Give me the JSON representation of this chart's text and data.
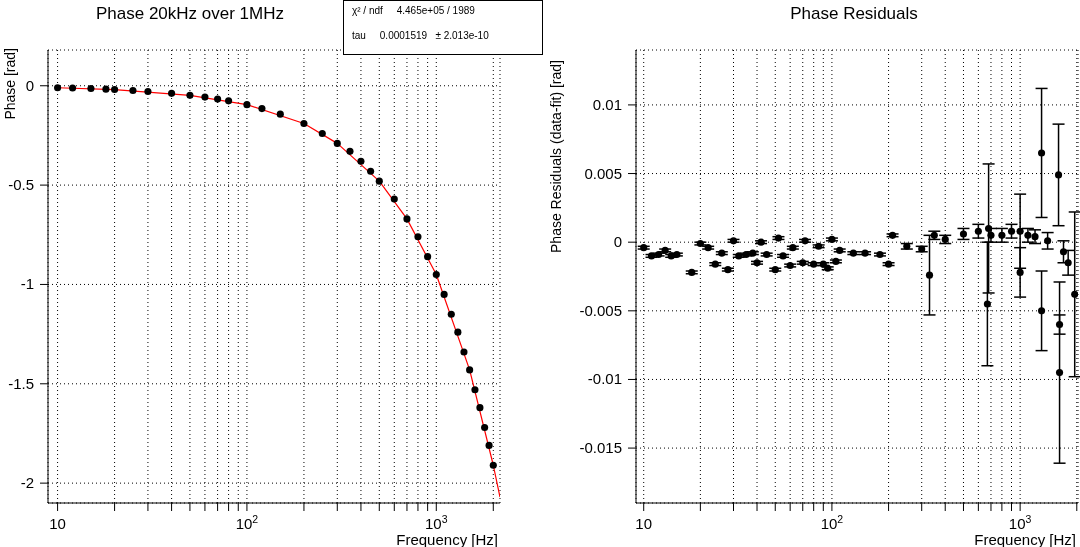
{
  "chart_data": [
    {
      "type": "scatter",
      "title": "Phase 20kHz over 1MHz",
      "xlabel": "Frequency [Hz]",
      "ylabel": "Phase [rad]",
      "log": "x",
      "grid": true,
      "xlim": [
        8.9,
        2170
      ],
      "ylim": [
        -2.1,
        0.18
      ],
      "xticks": [
        {
          "value": 10,
          "label": "10"
        },
        {
          "value": 20,
          "label": null
        },
        {
          "value": 30,
          "label": null
        },
        {
          "value": 40,
          "label": null
        },
        {
          "value": 50,
          "label": null
        },
        {
          "value": 60,
          "label": null
        },
        {
          "value": 70,
          "label": null
        },
        {
          "value": 80,
          "label": null
        },
        {
          "value": 90,
          "label": null
        },
        {
          "value": 100,
          "label": "10$^{2}$"
        },
        {
          "value": 200,
          "label": null
        },
        {
          "value": 300,
          "label": null
        },
        {
          "value": 400,
          "label": null
        },
        {
          "value": 500,
          "label": null
        },
        {
          "value": 600,
          "label": null
        },
        {
          "value": 700,
          "label": null
        },
        {
          "value": 800,
          "label": null
        },
        {
          "value": 900,
          "label": null
        },
        {
          "value": 1000,
          "label": "10$^{3}$"
        },
        {
          "value": 2000,
          "label": null
        }
      ],
      "yticks": [
        0,
        -0.5,
        -1,
        -1.5,
        -2
      ],
      "annotations": [
        "χ² / ndf     4.465e+05 / 1989",
        "tau     0.0001519   ± 2.013e-10"
      ],
      "series": [
        {
          "type": "scatter",
          "color": "#000000",
          "marker": "circle",
          "x": [
            10,
            12,
            15,
            18,
            20,
            25,
            30,
            40,
            50,
            60,
            70,
            80,
            100,
            120,
            150,
            200,
            250,
            300,
            350,
            400,
            450,
            500,
            600,
            700,
            800,
            900,
            1000,
            1100,
            1200,
            1300,
            1400,
            1500,
            1600,
            1700,
            1800,
            1900,
            2000
          ],
          "values": [
            -0.01,
            -0.011,
            -0.014,
            -0.017,
            -0.019,
            -0.024,
            -0.029,
            -0.038,
            -0.048,
            -0.057,
            -0.067,
            -0.076,
            -0.095,
            -0.115,
            -0.143,
            -0.19,
            -0.24,
            -0.29,
            -0.33,
            -0.38,
            -0.43,
            -0.48,
            -0.57,
            -0.67,
            -0.76,
            -0.86,
            -0.95,
            -1.05,
            -1.15,
            -1.24,
            -1.34,
            -1.43,
            -1.53,
            -1.62,
            -1.72,
            -1.81,
            -1.91
          ]
        },
        {
          "type": "line",
          "color": "#ff0000",
          "x": [
            10,
            20,
            50,
            100,
            200,
            300,
            500,
            700,
            1000,
            1500,
            2000,
            2170
          ],
          "values": [
            -0.01,
            -0.019,
            -0.048,
            -0.095,
            -0.19,
            -0.29,
            -0.48,
            -0.67,
            -0.95,
            -1.43,
            -1.91,
            -2.07
          ]
        }
      ]
    },
    {
      "type": "scatter",
      "title": "Phase Residuals",
      "xlabel": "Frequency [Hz]",
      "ylabel": "Phase Residuals (data-fit) [rad]",
      "log": "x",
      "grid": true,
      "marker": "circle",
      "xlim": [
        9.1,
        2030
      ],
      "ylim": [
        -0.019,
        0.014
      ],
      "xticks": [
        {
          "value": 10,
          "label": "10"
        },
        {
          "value": 20,
          "label": null
        },
        {
          "value": 30,
          "label": null
        },
        {
          "value": 40,
          "label": null
        },
        {
          "value": 50,
          "label": null
        },
        {
          "value": 60,
          "label": null
        },
        {
          "value": 70,
          "label": null
        },
        {
          "value": 80,
          "label": null
        },
        {
          "value": 90,
          "label": null
        },
        {
          "value": 100,
          "label": "10$^{2}$"
        },
        {
          "value": 200,
          "label": null
        },
        {
          "value": 300,
          "label": null
        },
        {
          "value": 400,
          "label": null
        },
        {
          "value": 500,
          "label": null
        },
        {
          "value": 600,
          "label": null
        },
        {
          "value": 700,
          "label": null
        },
        {
          "value": 800,
          "label": null
        },
        {
          "value": 900,
          "label": null
        },
        {
          "value": 1000,
          "label": "10$^{3}$"
        },
        {
          "value": 2000,
          "label": null
        }
      ],
      "yticks": [
        0.01,
        0.005,
        0,
        -0.005,
        -0.01,
        -0.015
      ],
      "series": [
        {
          "type": "scatter",
          "color": "#000000",
          "x": [
            10,
            11,
            12,
            13,
            14,
            15,
            18,
            20,
            22,
            24,
            26,
            28,
            30,
            32,
            35,
            38,
            40,
            42,
            45,
            50,
            52,
            55,
            60,
            62,
            70,
            72,
            80,
            85,
            90,
            95,
            100,
            105,
            110,
            130,
            150,
            180,
            200,
            210,
            250,
            300,
            330,
            350,
            400,
            500,
            600,
            670,
            680,
            700,
            800,
            900,
            1000,
            1000,
            1100,
            1200,
            1300,
            1300,
            1400,
            1600,
            1620,
            1620,
            1700,
            1800,
            1950
          ],
          "values": [
            -0.0004,
            -0.001,
            -0.0009,
            -0.0006,
            -0.001,
            -0.0009,
            -0.0022,
            -0.0001,
            -0.0004,
            -0.0016,
            -0.0008,
            -0.002,
            0.0001,
            -0.001,
            -0.0009,
            -0.0008,
            -0.0015,
            0,
            -0.0009,
            -0.002,
            0.0003,
            -0.001,
            -0.0017,
            -0.0004,
            -0.0015,
            0.0001,
            -0.0016,
            -0.0003,
            -0.0016,
            -0.0019,
            0.0002,
            -0.0014,
            -0.0006,
            -0.0008,
            -0.0008,
            -0.0009,
            -0.0016,
            0.0005,
            -0.0003,
            -0.0005,
            -0.0024,
            0.0005,
            0.0002,
            0.0006,
            0.0008,
            -0.0045,
            0.001,
            0.0005,
            0.0005,
            0.0008,
            -0.0022,
            0.0008,
            0.0005,
            0.0004,
            0.0065,
            -0.005,
            0.0001,
            0.0049,
            -0.0095,
            -0.006,
            -0.0007,
            -0.0015,
            -0.0038
          ],
          "errors": [
            0.0001,
            0.0001,
            0.0001,
            0.0001,
            0.0001,
            0.0001,
            0.0001,
            0.0001,
            0.0001,
            0.0001,
            0.0001,
            0.0001,
            0.0001,
            0.0001,
            0.0001,
            0.0001,
            0.0001,
            0.0001,
            0.0001,
            0.0001,
            0.0001,
            0.0001,
            0.0001,
            0.0001,
            0.0001,
            0.0001,
            0.0001,
            0.0001,
            0.0001,
            0.0001,
            0.0001,
            0.0001,
            0.0001,
            0.0001,
            0.0001,
            0.0001,
            0.0001,
            0.0001,
            0.0002,
            0.0002,
            0.0029,
            0.0003,
            0.0003,
            0.0004,
            0.0005,
            0.0045,
            0.0047,
            0.0005,
            0.0005,
            0.0005,
            0.0018,
            0.0027,
            0.0005,
            0.0005,
            0.0047,
            0.0029,
            0.0006,
            0.0037,
            0.0066,
            0.0007,
            0.0008,
            0.0009,
            0.006
          ]
        }
      ]
    }
  ]
}
